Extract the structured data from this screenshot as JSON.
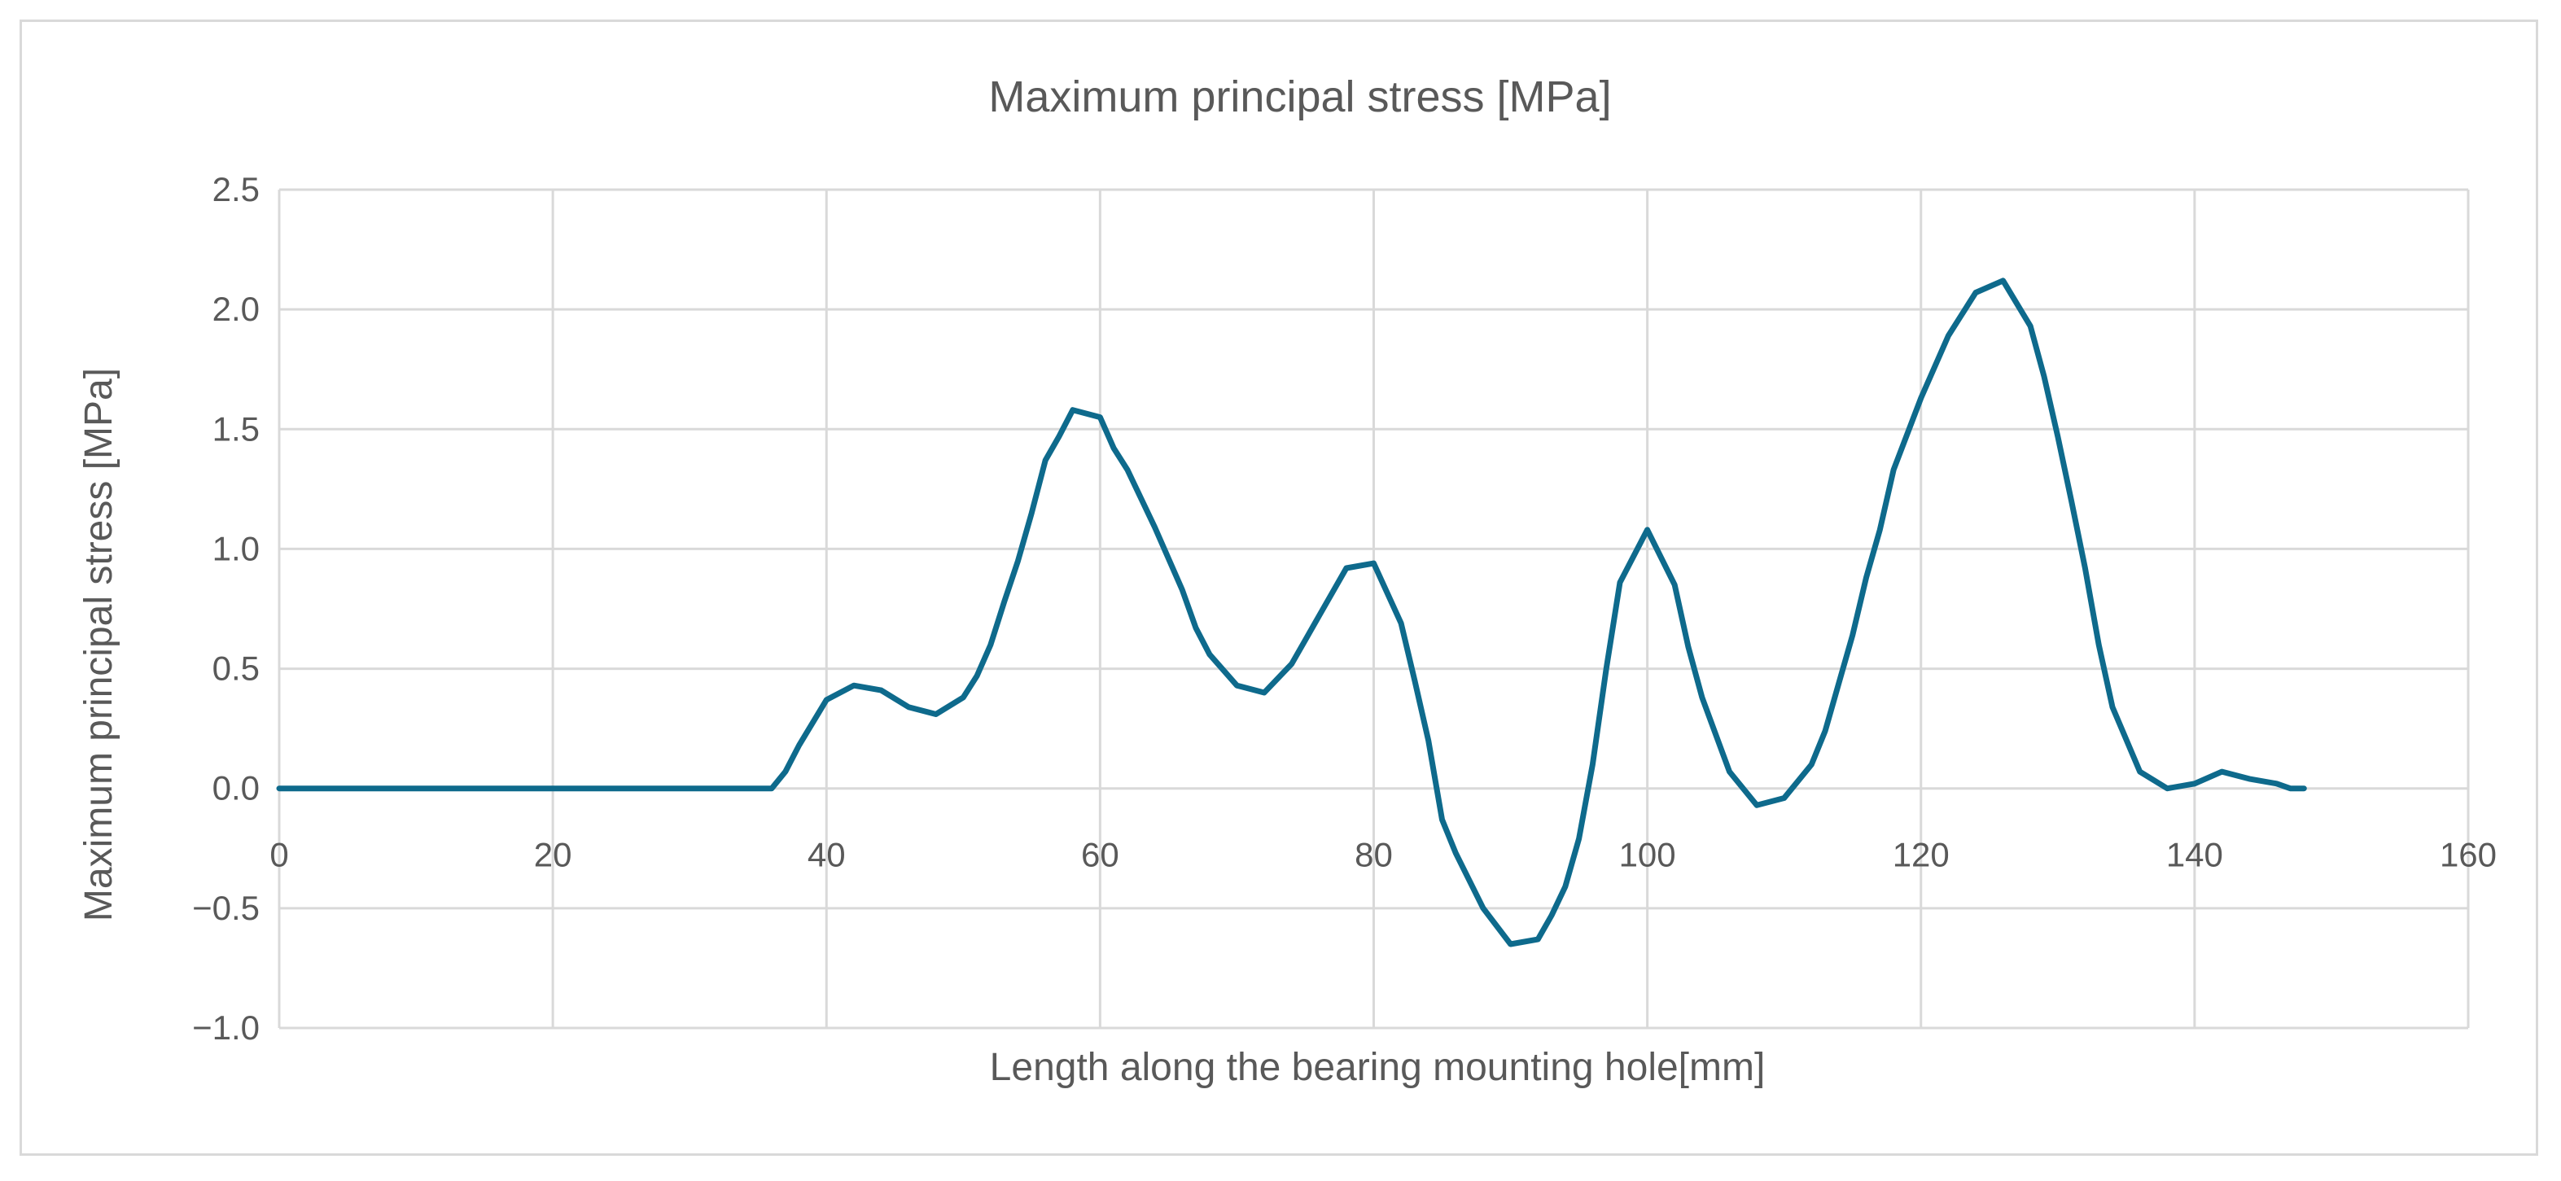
{
  "chart_data": {
    "type": "line",
    "title": "Maximum principal stress [MPa]",
    "xlabel": "Length along the bearing mounting hole[mm]",
    "ylabel": "Maximum principal stress [MPa]",
    "xlim": [
      0,
      160
    ],
    "ylim": [
      -1.0,
      2.5
    ],
    "xticks": [
      0,
      20,
      40,
      60,
      80,
      100,
      120,
      140,
      160
    ],
    "yticks": [
      2.5,
      2.0,
      1.5,
      1.0,
      0.5,
      0.0,
      -0.5,
      -1.0
    ],
    "xtick_labels": [
      "0",
      "20",
      "40",
      "60",
      "80",
      "100",
      "120",
      "140",
      "160"
    ],
    "ytick_labels": [
      "2.5",
      "2.0",
      "1.5",
      "1.0",
      "0.5",
      "0.0",
      "−0.5",
      "−1.0"
    ],
    "grid": true,
    "legend": "none",
    "series": [
      {
        "color": "#0e6a8c",
        "x": [
          0,
          10,
          20,
          30,
          36,
          37,
          38,
          40,
          42,
          44,
          46,
          48,
          50,
          51,
          52,
          53,
          54,
          55,
          56,
          57,
          58,
          60,
          61,
          62,
          64,
          66,
          67,
          68,
          70,
          72,
          74,
          75,
          76,
          78,
          80,
          82,
          83,
          84,
          85,
          86,
          88,
          90,
          92,
          93,
          94,
          95,
          96,
          97,
          98,
          100,
          102,
          103,
          104,
          106,
          108,
          110,
          112,
          113,
          114,
          115,
          116,
          117,
          118,
          120,
          122,
          124,
          126,
          128,
          129,
          130,
          131,
          132,
          133,
          134,
          136,
          138,
          140,
          142,
          144,
          146,
          147,
          148
        ],
        "y": [
          0,
          0,
          0,
          0,
          0,
          0.07,
          0.18,
          0.37,
          0.43,
          0.41,
          0.34,
          0.31,
          0.38,
          0.47,
          0.6,
          0.78,
          0.95,
          1.15,
          1.37,
          1.47,
          1.58,
          1.55,
          1.42,
          1.33,
          1.09,
          0.83,
          0.67,
          0.56,
          0.43,
          0.4,
          0.52,
          0.62,
          0.72,
          0.92,
          0.94,
          0.69,
          0.45,
          0.2,
          -0.13,
          -0.27,
          -0.5,
          -0.65,
          -0.63,
          -0.53,
          -0.41,
          -0.21,
          0.1,
          0.5,
          0.86,
          1.08,
          0.85,
          0.59,
          0.38,
          0.07,
          -0.07,
          -0.04,
          0.1,
          0.24,
          0.44,
          0.64,
          0.88,
          1.08,
          1.33,
          1.63,
          1.89,
          2.07,
          2.12,
          1.93,
          1.72,
          1.47,
          1.2,
          0.92,
          0.6,
          0.34,
          0.07,
          0.0,
          0.02,
          0.07,
          0.04,
          0.02,
          0.0,
          0.0
        ]
      }
    ]
  }
}
